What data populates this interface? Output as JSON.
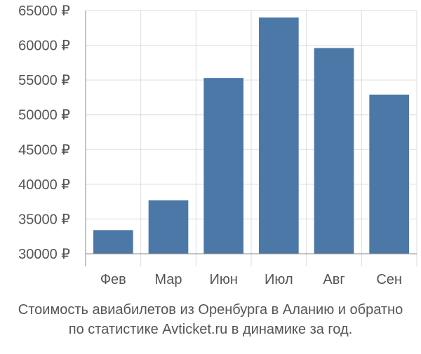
{
  "chart_data": {
    "type": "bar",
    "categories": [
      "Фев",
      "Мар",
      "Июн",
      "Июл",
      "Авг",
      "Сен"
    ],
    "values": [
      33400,
      37700,
      55300,
      64000,
      59600,
      52900
    ],
    "y_ticks": [
      "30000 ₽",
      "35000 ₽",
      "40000 ₽",
      "45000 ₽",
      "50000 ₽",
      "55000 ₽",
      "60000 ₽",
      "65000 ₽"
    ],
    "ylim": [
      30000,
      65000
    ],
    "grid": true,
    "legend": "none",
    "colors": {
      "bar": "#4c78a8",
      "grid": "#dddddd",
      "axis": "#888888",
      "tick_text": "#555555"
    }
  },
  "caption": {
    "line1": "Стоимость авиабилетов из Оренбурга в Аланию и обратно",
    "line2": "по статистике Avticket.ru в динамике за год."
  }
}
